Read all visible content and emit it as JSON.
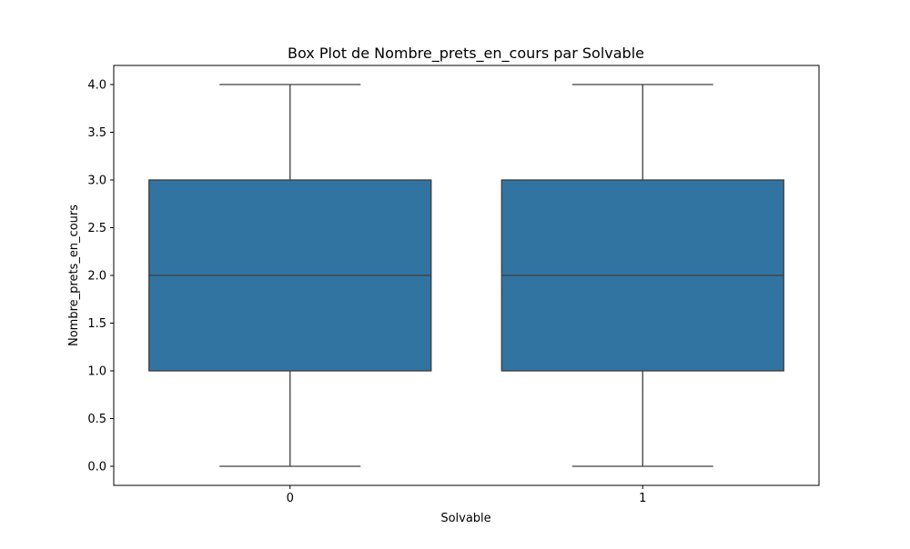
{
  "chart_data": {
    "type": "box",
    "title": "Box Plot de Nombre_prets_en_cours par Solvable",
    "xlabel": "Solvable",
    "ylabel": "Nombre_prets_en_cours",
    "categories": [
      "0",
      "1"
    ],
    "boxes": [
      {
        "category": "0",
        "whisker_low": 0.0,
        "q1": 1.0,
        "median": 2.0,
        "q3": 3.0,
        "whisker_high": 4.0
      },
      {
        "category": "1",
        "whisker_low": 0.0,
        "q1": 1.0,
        "median": 2.0,
        "q3": 3.0,
        "whisker_high": 4.0
      }
    ],
    "y_ticks": [
      "0.0",
      "0.5",
      "1.0",
      "1.5",
      "2.0",
      "2.5",
      "3.0",
      "3.5",
      "4.0"
    ],
    "ylim": [
      -0.2,
      4.2
    ],
    "grid": false,
    "box_color": "#3274a1",
    "line_color": "#3d3d3d"
  }
}
